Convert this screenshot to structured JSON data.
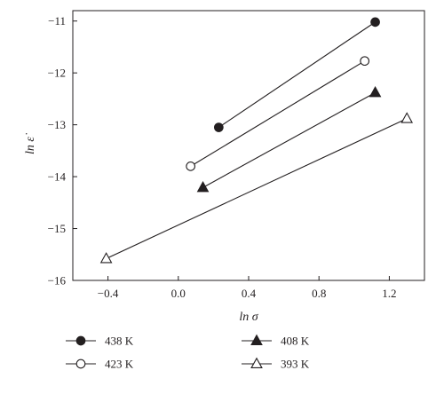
{
  "chart_data": {
    "type": "scatter",
    "xlabel": "ln σ",
    "ylabel": "ln ε̇",
    "xlim": [
      -0.6,
      1.4
    ],
    "ylim": [
      -16,
      -10.8
    ],
    "xticks": [
      -0.4,
      0.0,
      0.4,
      0.8,
      1.2
    ],
    "yticks": [
      -11,
      -12,
      -13,
      -14,
      -15,
      -16
    ],
    "xtick_labels": [
      "−0.4",
      "0.0",
      "0.4",
      "0.8",
      "1.2"
    ],
    "ytick_labels": [
      "−11",
      "−12",
      "−13",
      "−14",
      "−15",
      "−16"
    ],
    "grid": false,
    "legend_position": "bottom",
    "series": [
      {
        "name": "438 K",
        "marker": "filled-circle",
        "x": [
          0.23,
          1.12
        ],
        "y": [
          -13.05,
          -11.02
        ]
      },
      {
        "name": "423 K",
        "marker": "open-circle",
        "x": [
          0.07,
          1.06
        ],
        "y": [
          -13.8,
          -11.77
        ]
      },
      {
        "name": "408 K",
        "marker": "filled-triangle",
        "x": [
          0.14,
          1.12
        ],
        "y": [
          -14.21,
          -12.38
        ]
      },
      {
        "name": "393 K",
        "marker": "open-triangle",
        "x": [
          -0.41,
          1.3
        ],
        "y": [
          -15.58,
          -12.88
        ]
      }
    ]
  },
  "colors": {
    "ink": "#231f20",
    "background": "#ffffff"
  }
}
